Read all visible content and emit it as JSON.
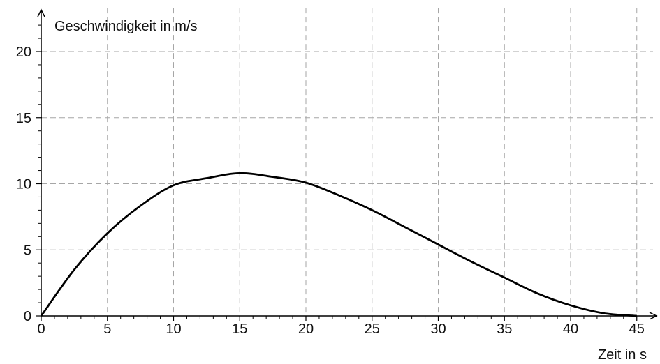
{
  "chart_data": {
    "type": "line",
    "xlabel": "Zeit in s",
    "ylabel": "Geschwindigkeit in m/s",
    "xlim": [
      0,
      46
    ],
    "ylim": [
      0,
      23
    ],
    "grid": true,
    "x_ticks": [
      0,
      5,
      10,
      15,
      20,
      25,
      30,
      35,
      40,
      45
    ],
    "y_ticks": [
      0,
      5,
      10,
      15,
      20
    ],
    "series": [
      {
        "x": [
          0,
          2.5,
          5,
          7.5,
          10,
          12.5,
          15,
          17.5,
          20,
          22.5,
          25,
          27.5,
          30,
          32.5,
          35,
          37.5,
          40,
          42.5,
          45
        ],
        "y": [
          0,
          3.5,
          6.25,
          8.33,
          9.88,
          10.42,
          10.8,
          10.52,
          10.08,
          9.12,
          8.0,
          6.71,
          5.4,
          4.1,
          2.9,
          1.7,
          0.8,
          0.2,
          0
        ]
      }
    ]
  }
}
